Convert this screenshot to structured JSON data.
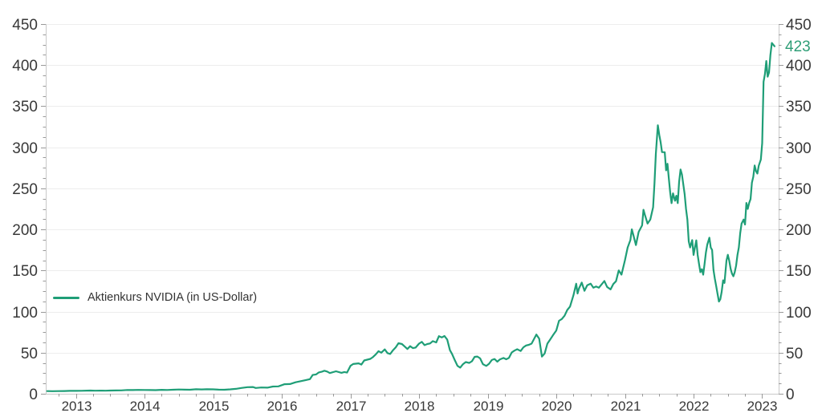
{
  "chart_data": {
    "type": "line",
    "title": "",
    "xlabel": "",
    "ylabel": "",
    "grid": "horizontal-only",
    "legend_position": "left-middle",
    "x_ticks": [
      2013,
      2014,
      2015,
      2016,
      2017,
      2018,
      2019,
      2020,
      2021,
      2022,
      2023
    ],
    "y_ticks": [
      0,
      50,
      100,
      150,
      200,
      250,
      300,
      350,
      400,
      450
    ],
    "ylim": [
      0,
      450
    ],
    "xlim": [
      2012.98,
      2023.66
    ],
    "x_label_offset": 0.42,
    "x_minor_step": 0.25,
    "y_minor_step": 12.5,
    "last_value_label": "423",
    "colors": {
      "line": "#1f9e77",
      "last_value": "#2f9e77",
      "grid": "#ededed",
      "axis": "#c9c9c9",
      "tick": "#999999",
      "text": "#383838"
    },
    "series": [
      {
        "name": "Aktienkurs NVIDIA (in US-Dollar)",
        "color": "#1f9e77",
        "points": [
          [
            2013.0,
            3.2
          ],
          [
            2013.08,
            3.1
          ],
          [
            2013.17,
            3.2
          ],
          [
            2013.25,
            3.3
          ],
          [
            2013.33,
            3.5
          ],
          [
            2013.42,
            3.5
          ],
          [
            2013.5,
            3.6
          ],
          [
            2013.58,
            3.8
          ],
          [
            2013.63,
            3.9
          ],
          [
            2013.7,
            3.7
          ],
          [
            2013.77,
            3.8
          ],
          [
            2013.85,
            3.7
          ],
          [
            2013.92,
            3.9
          ],
          [
            2014.0,
            4.0
          ],
          [
            2014.08,
            4.1
          ],
          [
            2014.17,
            4.6
          ],
          [
            2014.25,
            4.5
          ],
          [
            2014.33,
            4.7
          ],
          [
            2014.42,
            4.6
          ],
          [
            2014.5,
            4.5
          ],
          [
            2014.58,
            4.4
          ],
          [
            2014.67,
            4.8
          ],
          [
            2014.75,
            4.6
          ],
          [
            2014.83,
            4.9
          ],
          [
            2014.92,
            5.2
          ],
          [
            2015.0,
            5.0
          ],
          [
            2015.08,
            4.9
          ],
          [
            2015.17,
            5.5
          ],
          [
            2015.25,
            5.3
          ],
          [
            2015.33,
            5.5
          ],
          [
            2015.42,
            5.4
          ],
          [
            2015.5,
            5.0
          ],
          [
            2015.58,
            4.9
          ],
          [
            2015.67,
            5.4
          ],
          [
            2015.75,
            6.0
          ],
          [
            2015.83,
            7.0
          ],
          [
            2015.92,
            8.0
          ],
          [
            2016.0,
            8.2
          ],
          [
            2016.04,
            7.0
          ],
          [
            2016.12,
            7.6
          ],
          [
            2016.21,
            7.4
          ],
          [
            2016.29,
            8.8
          ],
          [
            2016.37,
            9.0
          ],
          [
            2016.46,
            11.6
          ],
          [
            2016.54,
            11.8
          ],
          [
            2016.62,
            14.0
          ],
          [
            2016.71,
            15.5
          ],
          [
            2016.79,
            17.0
          ],
          [
            2016.83,
            17.8
          ],
          [
            2016.87,
            22.8
          ],
          [
            2016.92,
            23.5
          ],
          [
            2016.96,
            26.0
          ],
          [
            2017.0,
            26.7
          ],
          [
            2017.04,
            28.0
          ],
          [
            2017.08,
            27.0
          ],
          [
            2017.12,
            25.2
          ],
          [
            2017.21,
            27.3
          ],
          [
            2017.29,
            25.5
          ],
          [
            2017.33,
            26.5
          ],
          [
            2017.37,
            25.8
          ],
          [
            2017.42,
            34.0
          ],
          [
            2017.46,
            36.2
          ],
          [
            2017.54,
            37.0
          ],
          [
            2017.58,
            35.5
          ],
          [
            2017.62,
            40.5
          ],
          [
            2017.71,
            42.5
          ],
          [
            2017.75,
            44.8
          ],
          [
            2017.79,
            48.0
          ],
          [
            2017.83,
            51.8
          ],
          [
            2017.87,
            50.0
          ],
          [
            2017.92,
            54.0
          ],
          [
            2017.96,
            49.5
          ],
          [
            2018.0,
            48.4
          ],
          [
            2018.04,
            53.0
          ],
          [
            2018.08,
            56.5
          ],
          [
            2018.12,
            61.5
          ],
          [
            2018.17,
            60.5
          ],
          [
            2018.21,
            57.5
          ],
          [
            2018.25,
            54.5
          ],
          [
            2018.29,
            57.9
          ],
          [
            2018.33,
            55.5
          ],
          [
            2018.37,
            56.2
          ],
          [
            2018.42,
            61.0
          ],
          [
            2018.46,
            63.2
          ],
          [
            2018.5,
            59.2
          ],
          [
            2018.54,
            60.5
          ],
          [
            2018.58,
            61.2
          ],
          [
            2018.62,
            64.0
          ],
          [
            2018.67,
            62.5
          ],
          [
            2018.71,
            70.1
          ],
          [
            2018.75,
            68.5
          ],
          [
            2018.79,
            70.3
          ],
          [
            2018.83,
            66.0
          ],
          [
            2018.87,
            53.0
          ],
          [
            2018.9,
            48.5
          ],
          [
            2018.94,
            41.0
          ],
          [
            2018.98,
            34.0
          ],
          [
            2019.02,
            31.8
          ],
          [
            2019.06,
            36.0
          ],
          [
            2019.1,
            38.6
          ],
          [
            2019.15,
            37.5
          ],
          [
            2019.19,
            39.5
          ],
          [
            2019.23,
            44.9
          ],
          [
            2019.27,
            45.3
          ],
          [
            2019.31,
            43.0
          ],
          [
            2019.35,
            36.0
          ],
          [
            2019.4,
            33.9
          ],
          [
            2019.44,
            36.5
          ],
          [
            2019.48,
            41.1
          ],
          [
            2019.52,
            42.3
          ],
          [
            2019.56,
            39.0
          ],
          [
            2019.6,
            41.9
          ],
          [
            2019.65,
            43.5
          ],
          [
            2019.69,
            42.0
          ],
          [
            2019.73,
            43.6
          ],
          [
            2019.77,
            50.3
          ],
          [
            2019.81,
            52.5
          ],
          [
            2019.85,
            54.2
          ],
          [
            2019.9,
            52.0
          ],
          [
            2019.94,
            56.5
          ],
          [
            2019.98,
            58.8
          ],
          [
            2020.02,
            59.5
          ],
          [
            2020.06,
            61.0
          ],
          [
            2020.1,
            67.5
          ],
          [
            2020.13,
            72.0
          ],
          [
            2020.17,
            67.0
          ],
          [
            2020.21,
            45.2
          ],
          [
            2020.25,
            49.0
          ],
          [
            2020.29,
            61.0
          ],
          [
            2020.33,
            65.9
          ],
          [
            2020.37,
            71.0
          ],
          [
            2020.42,
            77.0
          ],
          [
            2020.46,
            88.8
          ],
          [
            2020.5,
            91.0
          ],
          [
            2020.54,
            95.0
          ],
          [
            2020.58,
            102.0
          ],
          [
            2020.62,
            106.1
          ],
          [
            2020.67,
            120.0
          ],
          [
            2020.71,
            133.9
          ],
          [
            2020.73,
            122.0
          ],
          [
            2020.75,
            128.0
          ],
          [
            2020.79,
            135.3
          ],
          [
            2020.83,
            125.3
          ],
          [
            2020.87,
            132.0
          ],
          [
            2020.92,
            134.0
          ],
          [
            2020.96,
            129.0
          ],
          [
            2021.0,
            130.6
          ],
          [
            2021.04,
            129.0
          ],
          [
            2021.08,
            133.0
          ],
          [
            2021.12,
            137.2
          ],
          [
            2021.16,
            130.0
          ],
          [
            2021.21,
            127.0
          ],
          [
            2021.25,
            133.5
          ],
          [
            2021.29,
            137.0
          ],
          [
            2021.33,
            150.1
          ],
          [
            2021.37,
            145.0
          ],
          [
            2021.42,
            162.4
          ],
          [
            2021.46,
            178.0
          ],
          [
            2021.5,
            187.0
          ],
          [
            2021.52,
            200.1
          ],
          [
            2021.54,
            194.0
          ],
          [
            2021.58,
            181.0
          ],
          [
            2021.62,
            197.0
          ],
          [
            2021.67,
            205.0
          ],
          [
            2021.69,
            223.9
          ],
          [
            2021.71,
            218.0
          ],
          [
            2021.75,
            207.1
          ],
          [
            2021.79,
            212.0
          ],
          [
            2021.83,
            227.0
          ],
          [
            2021.85,
            255.7
          ],
          [
            2021.87,
            292.0
          ],
          [
            2021.9,
            326.8
          ],
          [
            2021.92,
            315.0
          ],
          [
            2021.94,
            306.0
          ],
          [
            2021.96,
            294.1
          ],
          [
            2022.0,
            294.0
          ],
          [
            2022.02,
            272.0
          ],
          [
            2022.04,
            280.0
          ],
          [
            2022.06,
            262.0
          ],
          [
            2022.08,
            244.9
          ],
          [
            2022.1,
            232.0
          ],
          [
            2022.12,
            243.9
          ],
          [
            2022.15,
            235.0
          ],
          [
            2022.17,
            241.0
          ],
          [
            2022.19,
            232.0
          ],
          [
            2022.21,
            258.0
          ],
          [
            2022.23,
            272.9
          ],
          [
            2022.25,
            267.0
          ],
          [
            2022.29,
            243.0
          ],
          [
            2022.31,
            225.0
          ],
          [
            2022.33,
            212.0
          ],
          [
            2022.35,
            185.5
          ],
          [
            2022.37,
            178.0
          ],
          [
            2022.4,
            187.0
          ],
          [
            2022.42,
            169.0
          ],
          [
            2022.44,
            178.0
          ],
          [
            2022.46,
            186.7
          ],
          [
            2022.48,
            169.0
          ],
          [
            2022.5,
            158.0
          ],
          [
            2022.52,
            148.0
          ],
          [
            2022.54,
            151.6
          ],
          [
            2022.56,
            145.0
          ],
          [
            2022.58,
            158.0
          ],
          [
            2022.6,
            172.0
          ],
          [
            2022.62,
            181.6
          ],
          [
            2022.65,
            190.0
          ],
          [
            2022.67,
            178.0
          ],
          [
            2022.69,
            175.0
          ],
          [
            2022.71,
            150.9
          ],
          [
            2022.73,
            140.0
          ],
          [
            2022.75,
            131.0
          ],
          [
            2022.77,
            121.4
          ],
          [
            2022.79,
            112.3
          ],
          [
            2022.81,
            115.0
          ],
          [
            2022.83,
            124.0
          ],
          [
            2022.85,
            138.0
          ],
          [
            2022.87,
            134.9
          ],
          [
            2022.9,
            162.0
          ],
          [
            2022.92,
            169.2
          ],
          [
            2022.94,
            162.0
          ],
          [
            2022.96,
            152.0
          ],
          [
            2022.98,
            146.1
          ],
          [
            2023.0,
            143.0
          ],
          [
            2023.02,
            148.0
          ],
          [
            2023.04,
            156.0
          ],
          [
            2023.06,
            169.0
          ],
          [
            2023.08,
            178.0
          ],
          [
            2023.1,
            195.4
          ],
          [
            2023.12,
            207.0
          ],
          [
            2023.15,
            212.0
          ],
          [
            2023.17,
            206.0
          ],
          [
            2023.19,
            232.2
          ],
          [
            2023.21,
            225.0
          ],
          [
            2023.23,
            232.0
          ],
          [
            2023.25,
            237.0
          ],
          [
            2023.27,
            257.0
          ],
          [
            2023.29,
            264.0
          ],
          [
            2023.31,
            277.8
          ],
          [
            2023.33,
            271.0
          ],
          [
            2023.35,
            268.0
          ],
          [
            2023.37,
            277.5
          ],
          [
            2023.4,
            285.0
          ],
          [
            2023.42,
            305.0
          ],
          [
            2023.44,
            379.8
          ],
          [
            2023.46,
            389.0
          ],
          [
            2023.48,
            405.0
          ],
          [
            2023.5,
            386.0
          ],
          [
            2023.52,
            391.0
          ],
          [
            2023.54,
            412.0
          ],
          [
            2023.56,
            427.0
          ],
          [
            2023.6,
            423.0
          ]
        ]
      }
    ]
  }
}
